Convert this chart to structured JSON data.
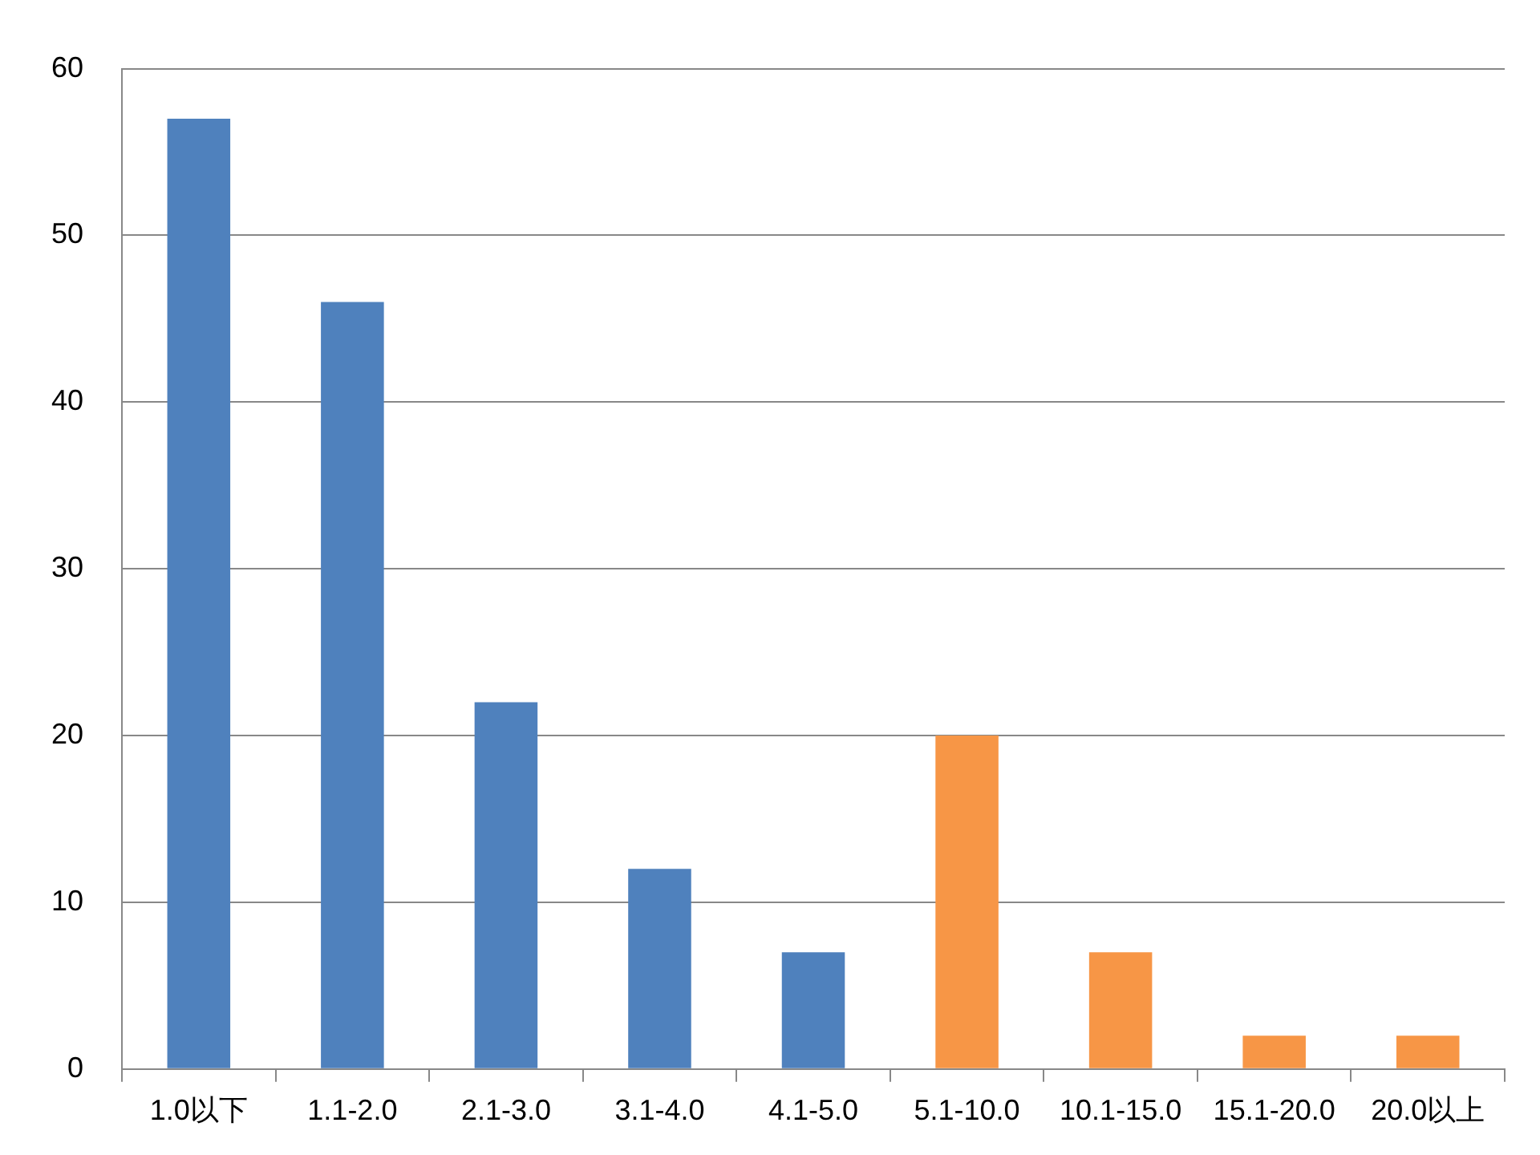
{
  "chart_data": {
    "type": "bar",
    "categories": [
      "1.0以下",
      "1.1-2.0",
      "2.1-3.0",
      "3.1-4.0",
      "4.1-5.0",
      "5.1-10.0",
      "10.1-15.0",
      "15.1-20.0",
      "20.0以上"
    ],
    "values": [
      57,
      46,
      22,
      12,
      7,
      20,
      7,
      2,
      2
    ],
    "colors": [
      "#4f81bd",
      "#4f81bd",
      "#4f81bd",
      "#4f81bd",
      "#4f81bd",
      "#f79646",
      "#f79646",
      "#f79646",
      "#f79646"
    ],
    "ylim": [
      0,
      60
    ],
    "yticks": [
      0,
      10,
      20,
      30,
      40,
      50,
      60
    ],
    "grid": "y",
    "legend": false
  }
}
